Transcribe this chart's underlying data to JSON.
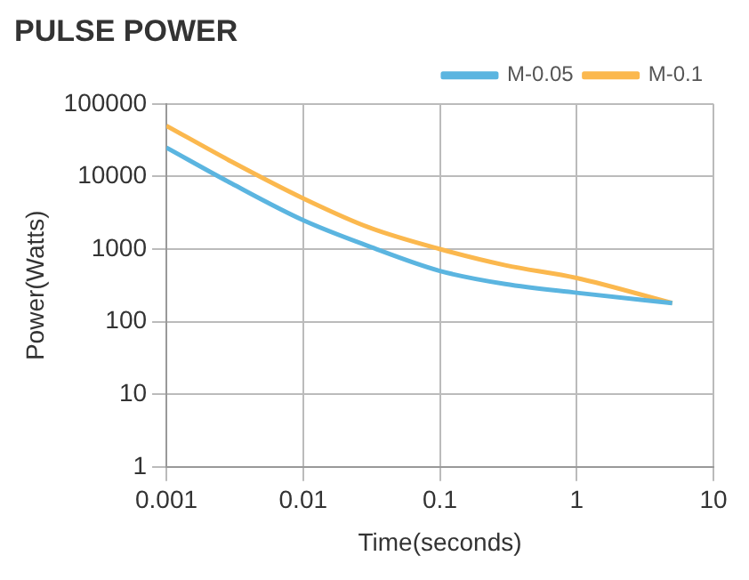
{
  "chart_data": {
    "type": "line",
    "title": "PULSE POWER",
    "xlabel": "Time(seconds)",
    "ylabel": "Power(Watts)",
    "log": "xy",
    "xlim": [
      0.001,
      10
    ],
    "xticks": [
      0.001,
      0.01,
      0.1,
      1,
      10
    ],
    "ylim": [
      1,
      100000
    ],
    "yticks": [
      1,
      10,
      100,
      1000,
      10000,
      100000
    ],
    "grid": true,
    "legend": "top right",
    "marker": "none",
    "series": [
      {
        "name": "M-0.05",
        "color": "#5bb5e0",
        "x": [
          0.001,
          0.003,
          0.01,
          0.03,
          0.1,
          0.3,
          1,
          5
        ],
        "values": [
          25000,
          8000,
          2500,
          1100,
          500,
          330,
          250,
          180
        ]
      },
      {
        "name": "M-0.1",
        "color": "#fbb84e",
        "x": [
          0.001,
          0.003,
          0.01,
          0.03,
          0.1,
          0.3,
          1,
          5
        ],
        "values": [
          50000,
          16000,
          5000,
          2000,
          1000,
          600,
          400,
          180
        ]
      }
    ]
  }
}
